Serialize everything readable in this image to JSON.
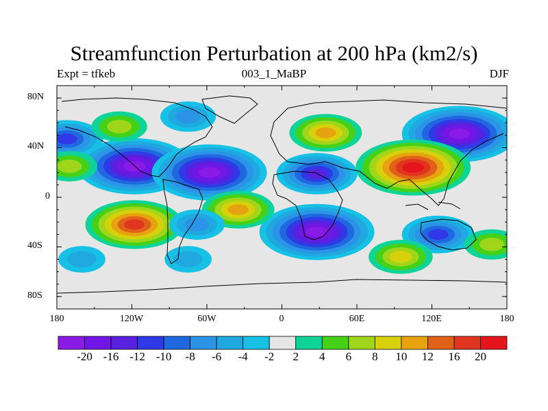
{
  "title": "Streamfunction Perturbation at 200 hPa (km2/s)",
  "subtitle_left": "Expt = tfkeb",
  "subtitle_center": "003_1_MaBP",
  "subtitle_right": "DJF",
  "lat_ticks": [
    "80N",
    "40N",
    "0",
    "40S",
    "80S"
  ],
  "lon_ticks": [
    "180",
    "120W",
    "60W",
    "0",
    "60E",
    "120E",
    "180"
  ],
  "colorbar": {
    "labels": [
      "-20",
      "-16",
      "-12",
      "-10",
      "-8",
      "-6",
      "-4",
      "-2",
      "2",
      "4",
      "6",
      "8",
      "10",
      "12",
      "16",
      "20"
    ],
    "colors": [
      "#8a1ae6",
      "#7216e6",
      "#5a20e0",
      "#2f39e6",
      "#1f68e0",
      "#2b94e6",
      "#1fa9e0",
      "#17c1e6",
      "#e6e6e6",
      "#10d397",
      "#44d118",
      "#9fd51a",
      "#d7d10c",
      "#e6a30f",
      "#e0621a",
      "#e0351f",
      "#e6141c"
    ]
  },
  "chart_data": {
    "type": "heatmap",
    "title": "Streamfunction Perturbation at 200 hPa (km2/s)",
    "xlabel": "",
    "ylabel": "",
    "xlim": [
      -180,
      180
    ],
    "ylim": [
      -90,
      90
    ],
    "x_ticks": [
      "180",
      "120W",
      "60W",
      "0",
      "60E",
      "120E",
      "180"
    ],
    "y_ticks": [
      "80N",
      "40N",
      "0",
      "40S",
      "80S"
    ],
    "contour_levels": [
      -20,
      -16,
      -12,
      -10,
      -8,
      -6,
      -4,
      -2,
      2,
      4,
      6,
      8,
      10,
      12,
      16,
      20
    ],
    "features": [
      {
        "lon": -118,
        "lat": 25,
        "value": -20
      },
      {
        "lon": -58,
        "lat": 20,
        "value": -20
      },
      {
        "lon": 28,
        "lat": 19,
        "value": -12
      },
      {
        "lon": 28,
        "lat": -28,
        "value": -20
      },
      {
        "lon": 142,
        "lat": 51,
        "value": -20
      },
      {
        "lon": -172,
        "lat": 47,
        "value": -10
      },
      {
        "lon": -118,
        "lat": -22,
        "value": 16
      },
      {
        "lon": 105,
        "lat": 24,
        "value": 20
      },
      {
        "lon": 35,
        "lat": 52,
        "value": 10
      },
      {
        "lon": -130,
        "lat": 57,
        "value": 6
      },
      {
        "lon": -35,
        "lat": -10,
        "value": 10
      },
      {
        "lon": 125,
        "lat": -30,
        "value": -10
      },
      {
        "lon": -75,
        "lat": 65,
        "value": -6
      },
      {
        "lon": 95,
        "lat": -48,
        "value": 8
      },
      {
        "lon": 168,
        "lat": -38,
        "value": 6
      },
      {
        "lon": -160,
        "lat": -50,
        "value": -4
      },
      {
        "lon": -75,
        "lat": -50,
        "value": -4
      },
      {
        "lon": -68,
        "lat": -22,
        "value": -6
      },
      {
        "lon": -170,
        "lat": 25,
        "value": 6
      }
    ]
  }
}
